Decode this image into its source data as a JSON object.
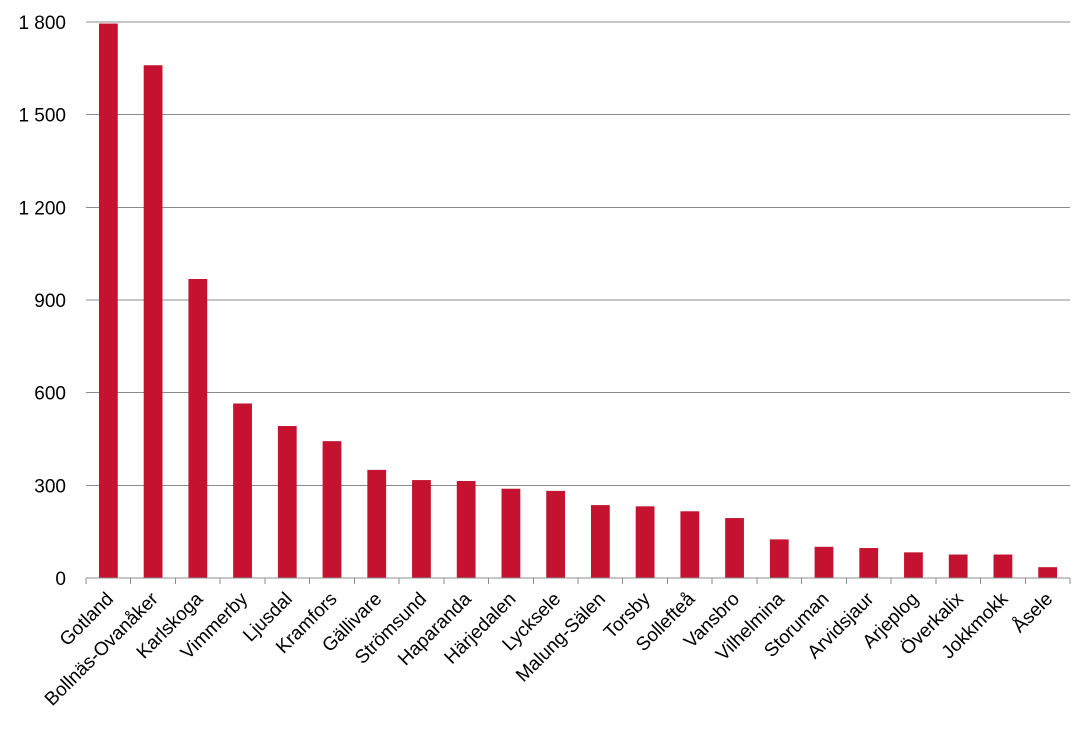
{
  "chart_data": {
    "type": "bar",
    "title": "",
    "xlabel": "",
    "ylabel": "",
    "ylim": [
      0,
      1800
    ],
    "yticks": [
      0,
      300,
      600,
      900,
      1200,
      1500,
      1800
    ],
    "ytick_labels": [
      "0",
      "300",
      "600",
      "900",
      "1 200",
      "1 500",
      "1 800"
    ],
    "grid": true,
    "legend": "none",
    "bar_color": "#C41230",
    "categories": [
      "Gotland",
      "Bollnäs-Ovanåker",
      "Karlskoga",
      "Vimmerby",
      "Ljusdal",
      "Kramfors",
      "Gällivare",
      "Strömsund",
      "Haparanda",
      "Härjedalen",
      "Lycksele",
      "Malung-Sälen",
      "Torsby",
      "Sollefteå",
      "Vansbro",
      "Vilhelmina",
      "Storuman",
      "Arvidsjaur",
      "Arjeplog",
      "Överkalix",
      "Jokkmokk",
      "Åsele"
    ],
    "values": [
      1795,
      1660,
      968,
      565,
      492,
      443,
      350,
      317,
      314,
      289,
      282,
      236,
      232,
      216,
      194,
      125,
      101,
      97,
      83,
      76,
      76,
      35
    ]
  }
}
